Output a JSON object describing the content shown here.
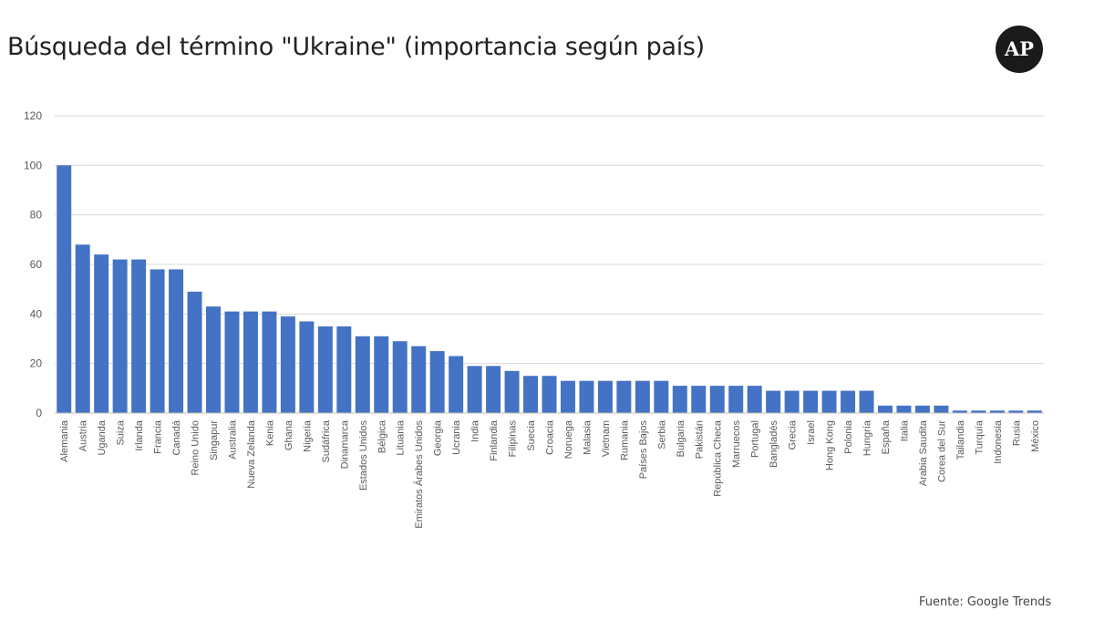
{
  "header": {
    "title": "Búsqueda del término \"Ukraine\" (importancia según país)",
    "logo": "AP"
  },
  "footer": {
    "source": "Fuente: Google Trends"
  },
  "colors": {
    "bar": "#4472C4",
    "grid": "#D9D9D9"
  },
  "chart_data": {
    "type": "bar",
    "title": "Búsqueda del término \"Ukraine\" (importancia según país)",
    "xlabel": "",
    "ylabel": "",
    "ylim": [
      0,
      120
    ],
    "yticks": [
      0,
      20,
      40,
      60,
      80,
      100,
      120
    ],
    "grid": true,
    "legend": "none",
    "categories": [
      "Alemania",
      "Austria",
      "Uganda",
      "Suiza",
      "Irlanda",
      "Francia",
      "Canadá",
      "Reino Unido",
      "Singapur",
      "Australia",
      "Nueva Zelanda",
      "Kenia",
      "Ghana",
      "Nigeria",
      "Sudáfrica",
      "Dinamarca",
      "Estados Unidos",
      "Bélgica",
      "Lituania",
      "Emiratos Árabes Unidos",
      "Georgia",
      "Ucrania",
      "India",
      "Finlandia",
      "Filipinas",
      "Suecia",
      "Croacia",
      "Noruega",
      "Malasia",
      "Vietnam",
      "Rumania",
      "Países Bajos",
      "Serbia",
      "Bulgaria",
      "Pakistán",
      "República Checa",
      "Marruecos",
      "Portugal",
      "Bangladés",
      "Grecia",
      "Israel",
      "Hong Kong",
      "Polonia",
      "Hungría",
      "España",
      "Italia",
      "Arabia Saudita",
      "Corea del Sur",
      "Tailandia",
      "Turquía",
      "Indonesia",
      "Rusia",
      "México"
    ],
    "values": [
      100,
      68,
      64,
      62,
      62,
      58,
      58,
      49,
      43,
      41,
      41,
      41,
      39,
      37,
      35,
      35,
      31,
      31,
      29,
      27,
      25,
      23,
      19,
      19,
      17,
      15,
      15,
      13,
      13,
      13,
      13,
      13,
      13,
      11,
      11,
      11,
      11,
      11,
      9,
      9,
      9,
      9,
      9,
      9,
      3,
      3,
      3,
      3,
      1,
      1,
      1,
      1,
      1
    ]
  }
}
